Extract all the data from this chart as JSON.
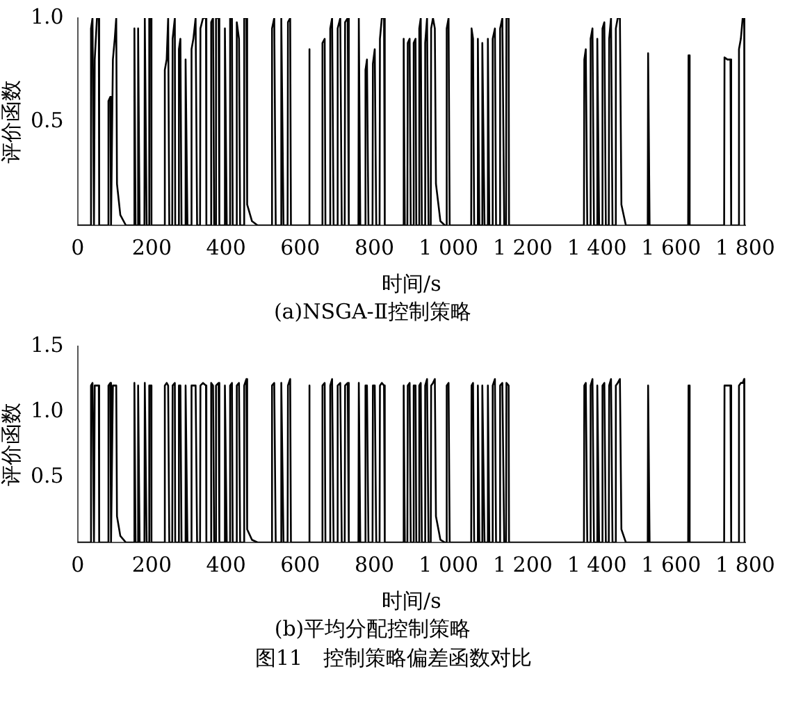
{
  "chart_data": [
    {
      "type": "line",
      "title": "(a)NSGA-Ⅱ控制策略",
      "xlabel": "时间/s",
      "ylabel": "评价函数",
      "xlim": [
        0,
        1800
      ],
      "ylim": [
        0,
        1
      ],
      "xticks": [
        0,
        200,
        400,
        600,
        800,
        {
          "value": 1000,
          "label": "1 000"
        },
        {
          "value": 1200,
          "label": "1 200"
        },
        {
          "value": 1400,
          "label": "1 400"
        },
        {
          "value": 1600,
          "label": "1 600"
        },
        {
          "value": 1800,
          "label": "1 800"
        }
      ],
      "yticks": [
        {
          "value": 0.5,
          "label": "0.5"
        },
        {
          "value": 1,
          "label": "1.0"
        }
      ],
      "grid": false,
      "legend": false,
      "marker": "none",
      "line_style": "solid",
      "series": [
        {
          "color": "#000000",
          "x": [
            0,
            35,
            36,
            40,
            44,
            46,
            52,
            57,
            58,
            82,
            83,
            88,
            90,
            95,
            100,
            104,
            106,
            115,
            130,
            152,
            153,
            156,
            162,
            163,
            167,
            180,
            181,
            186,
            192,
            193,
            198,
            199,
            234,
            235,
            240,
            244,
            247,
            255,
            256,
            262,
            263,
            272,
            273,
            277,
            280,
            290,
            291,
            296,
            306,
            307,
            312,
            318,
            322,
            330,
            331,
            338,
            346,
            347,
            359,
            360,
            365,
            368,
            372,
            373,
            380,
            382,
            396,
            397,
            402,
            410,
            411,
            416,
            418,
            428,
            429,
            435,
            438,
            448,
            449,
            455,
            457,
            470,
            485,
            523,
            524,
            530,
            534,
            548,
            549,
            555,
            566,
            567,
            573,
            575,
            623,
            624,
            626,
            659,
            660,
            666,
            668,
            680,
            681,
            686,
            690,
            700,
            701,
            708,
            712,
            720,
            721,
            728,
            731,
            757,
            758,
            762,
            775,
            776,
            780,
            784,
            795,
            796,
            801,
            805,
            814,
            815,
            820,
            826,
            828,
            878,
            879,
            882,
            889,
            890,
            895,
            898,
            905,
            906,
            911,
            913,
            920,
            921,
            925,
            928,
            936,
            937,
            942,
            946,
            952,
            953,
            958,
            963,
            966,
            978,
            990,
            994,
            995,
            1000,
            1003,
            1061,
            1062,
            1066,
            1069,
            1078,
            1079,
            1083,
            1090,
            1091,
            1097,
            1105,
            1106,
            1110,
            1118,
            1119,
            1125,
            1128,
            1138,
            1139,
            1145,
            1150,
            1155,
            1156,
            1162,
            1163,
            1365,
            1366,
            1370,
            1374,
            1382,
            1383,
            1388,
            1392,
            1400,
            1401,
            1406,
            1414,
            1415,
            1420,
            1424,
            1432,
            1433,
            1438,
            1442,
            1450,
            1451,
            1456,
            1462,
            1466,
            1478,
            1537,
            1538,
            1542,
            1646,
            1647,
            1650,
            1743,
            1744,
            1752,
            1760,
            1762,
            1782,
            1783,
            1788,
            1793,
            1797,
            1798,
            1800
          ],
          "values": [
            0,
            0,
            0.95,
            1,
            0,
            0.8,
            1,
            1,
            0,
            0,
            0.6,
            0.62,
            0,
            0.8,
            0.9,
            1,
            0.2,
            0.05,
            0,
            0,
            0.95,
            0,
            0,
            0.95,
            0,
            0,
            1,
            0,
            0,
            1,
            1,
            0,
            0,
            0.75,
            0.8,
            1,
            0,
            0,
            0.9,
            1,
            0,
            0,
            0.85,
            0.9,
            0,
            0,
            0.8,
            0,
            0,
            0.85,
            0.9,
            1,
            0,
            0,
            0.95,
            1,
            1,
            0,
            0,
            0.98,
            1,
            0,
            0,
            1,
            1,
            0,
            0,
            0.95,
            0,
            0,
            1,
            1,
            0,
            0,
            0.98,
            0.9,
            0,
            0,
            1,
            1,
            0.1,
            0.02,
            0,
            0,
            0.95,
            1,
            0,
            0,
            1,
            0,
            0,
            0.98,
            1,
            0,
            0,
            0.85,
            0,
            0,
            0.88,
            0.9,
            0,
            0,
            0.95,
            1,
            0,
            0,
            0.95,
            1,
            0,
            0,
            0.98,
            1,
            0,
            0,
            1,
            0,
            0,
            0.75,
            0.8,
            0,
            0,
            0.78,
            0.85,
            0,
            0,
            0.9,
            1,
            1,
            0,
            0,
            0.9,
            0,
            0,
            0.88,
            0.9,
            0,
            0,
            0.88,
            0.9,
            0,
            0,
            0.95,
            1,
            0,
            0,
            0.88,
            1,
            0,
            0,
            0.95,
            1,
            0.95,
            0.2,
            0.02,
            0,
            0,
            0.95,
            1,
            0,
            0,
            0.95,
            0.9,
            0,
            0,
            0.9,
            0,
            0,
            0.88,
            0,
            0,
            0.9,
            0,
            0,
            0.9,
            0.95,
            0,
            0,
            0.95,
            1,
            0,
            0,
            1,
            1,
            0,
            0,
            0.8,
            0.85,
            0,
            0,
            0.9,
            0.95,
            0,
            0,
            0.9,
            0,
            0,
            0.95,
            0.98,
            0,
            0,
            0.9,
            1,
            0,
            0,
            0.95,
            1,
            1,
            0.1,
            0,
            0,
            0.83,
            0,
            0,
            0.82,
            0,
            0,
            0.81,
            0.8,
            0.8,
            0,
            0,
            0.85,
            0.9,
            1,
            1,
            0,
            0
          ]
        }
      ]
    },
    {
      "type": "line",
      "title": "(b)平均分配控制策略",
      "xlabel": "时间/s",
      "ylabel": "评价函数",
      "xlim": [
        0,
        1800
      ],
      "ylim": [
        0,
        1.5
      ],
      "xticks": [
        0,
        200,
        400,
        600,
        800,
        {
          "value": 1000,
          "label": "1 000"
        },
        {
          "value": 1200,
          "label": "1 200"
        },
        {
          "value": 1400,
          "label": "1 400"
        },
        {
          "value": 1600,
          "label": "1 600"
        },
        {
          "value": 1800,
          "label": "1 800"
        }
      ],
      "yticks": [
        {
          "value": 0.5,
          "label": "0.5"
        },
        {
          "value": 1,
          "label": "1.0"
        },
        {
          "value": 1.5,
          "label": "1.5"
        }
      ],
      "grid": false,
      "legend": false,
      "marker": "none",
      "line_style": "solid",
      "annotations": [
        "图11　控制策略偏差函数对比"
      ],
      "series": [
        {
          "color": "#000000",
          "x": [
            0,
            35,
            36,
            40,
            44,
            46,
            52,
            57,
            58,
            82,
            83,
            88,
            90,
            95,
            100,
            104,
            106,
            115,
            130,
            152,
            153,
            156,
            162,
            163,
            167,
            180,
            181,
            186,
            192,
            193,
            198,
            199,
            234,
            235,
            240,
            244,
            247,
            255,
            256,
            262,
            263,
            272,
            273,
            277,
            280,
            290,
            291,
            296,
            306,
            307,
            312,
            318,
            322,
            330,
            331,
            338,
            346,
            347,
            359,
            360,
            365,
            368,
            372,
            373,
            380,
            382,
            396,
            397,
            402,
            410,
            411,
            416,
            418,
            428,
            429,
            435,
            438,
            448,
            449,
            455,
            457,
            470,
            485,
            523,
            524,
            530,
            534,
            548,
            549,
            555,
            566,
            567,
            573,
            575,
            623,
            624,
            626,
            659,
            660,
            666,
            668,
            680,
            681,
            686,
            690,
            700,
            701,
            708,
            712,
            720,
            721,
            728,
            731,
            757,
            758,
            762,
            775,
            776,
            780,
            784,
            795,
            796,
            801,
            805,
            814,
            815,
            820,
            826,
            828,
            878,
            879,
            882,
            889,
            890,
            895,
            898,
            905,
            906,
            911,
            913,
            920,
            921,
            925,
            928,
            936,
            937,
            942,
            946,
            952,
            953,
            958,
            963,
            966,
            978,
            990,
            994,
            995,
            1000,
            1003,
            1061,
            1062,
            1066,
            1069,
            1078,
            1079,
            1083,
            1090,
            1091,
            1097,
            1105,
            1106,
            1110,
            1118,
            1119,
            1125,
            1128,
            1138,
            1139,
            1145,
            1150,
            1155,
            1156,
            1162,
            1163,
            1365,
            1366,
            1370,
            1374,
            1382,
            1383,
            1388,
            1392,
            1400,
            1401,
            1406,
            1414,
            1415,
            1420,
            1424,
            1432,
            1433,
            1438,
            1442,
            1450,
            1451,
            1456,
            1462,
            1466,
            1478,
            1537,
            1538,
            1542,
            1646,
            1647,
            1650,
            1743,
            1744,
            1752,
            1760,
            1762,
            1782,
            1783,
            1788,
            1793,
            1797,
            1798,
            1800
          ],
          "values": [
            0,
            0,
            1.2,
            1.22,
            0,
            1.2,
            1.2,
            1.2,
            0,
            0,
            1.2,
            1.22,
            0,
            1.2,
            1.2,
            1.2,
            0.2,
            0.05,
            0,
            0,
            1.22,
            0,
            0,
            1.2,
            0,
            0,
            1.22,
            0,
            0,
            1.2,
            1.2,
            0,
            0,
            1.2,
            1.22,
            1.2,
            0,
            0,
            1.2,
            1.22,
            0,
            0,
            1.2,
            1.2,
            0,
            0,
            1.2,
            0,
            0,
            1.2,
            1.2,
            1.2,
            0,
            0,
            1.2,
            1.22,
            1.2,
            0,
            0,
            1.22,
            1.2,
            0,
            0,
            1.2,
            1.22,
            0,
            0,
            1.2,
            0,
            0,
            1.2,
            1.22,
            0,
            0,
            1.2,
            1.22,
            0,
            0,
            1.2,
            1.25,
            0.1,
            0.02,
            0,
            0,
            1.2,
            1.22,
            0,
            0,
            1.22,
            0,
            0,
            1.2,
            1.25,
            0,
            0,
            1.2,
            0,
            0,
            1.2,
            1.22,
            0,
            0,
            1.2,
            1.25,
            0,
            0,
            1.2,
            1.22,
            0,
            0,
            1.2,
            1.22,
            0,
            0,
            1.22,
            0,
            0,
            1.2,
            1.2,
            0,
            0,
            1.2,
            1.2,
            0,
            0,
            1.2,
            1.22,
            1.2,
            0,
            0,
            1.2,
            0,
            0,
            1.2,
            1.22,
            0,
            0,
            1.2,
            1.2,
            0,
            0,
            1.2,
            1.22,
            0,
            0,
            1.2,
            1.25,
            0,
            0,
            1.2,
            1.22,
            1.25,
            0.2,
            0.02,
            0,
            0,
            1.2,
            1.22,
            0,
            0,
            1.2,
            1.22,
            0,
            0,
            1.2,
            0,
            0,
            1.2,
            0,
            0,
            1.2,
            0,
            0,
            1.2,
            1.25,
            0,
            0,
            1.2,
            1.22,
            0,
            0,
            1.22,
            1.2,
            0,
            0,
            1.2,
            1.22,
            0,
            0,
            1.2,
            1.25,
            0,
            0,
            1.2,
            0,
            0,
            1.2,
            1.22,
            0,
            0,
            1.2,
            1.25,
            0,
            0,
            1.2,
            1.22,
            1.25,
            0.1,
            0,
            0,
            1.2,
            0,
            0,
            1.2,
            0,
            0,
            1.2,
            1.2,
            1.2,
            0,
            0,
            1.2,
            1.22,
            1.22,
            1.25,
            0,
            0
          ]
        }
      ]
    }
  ]
}
